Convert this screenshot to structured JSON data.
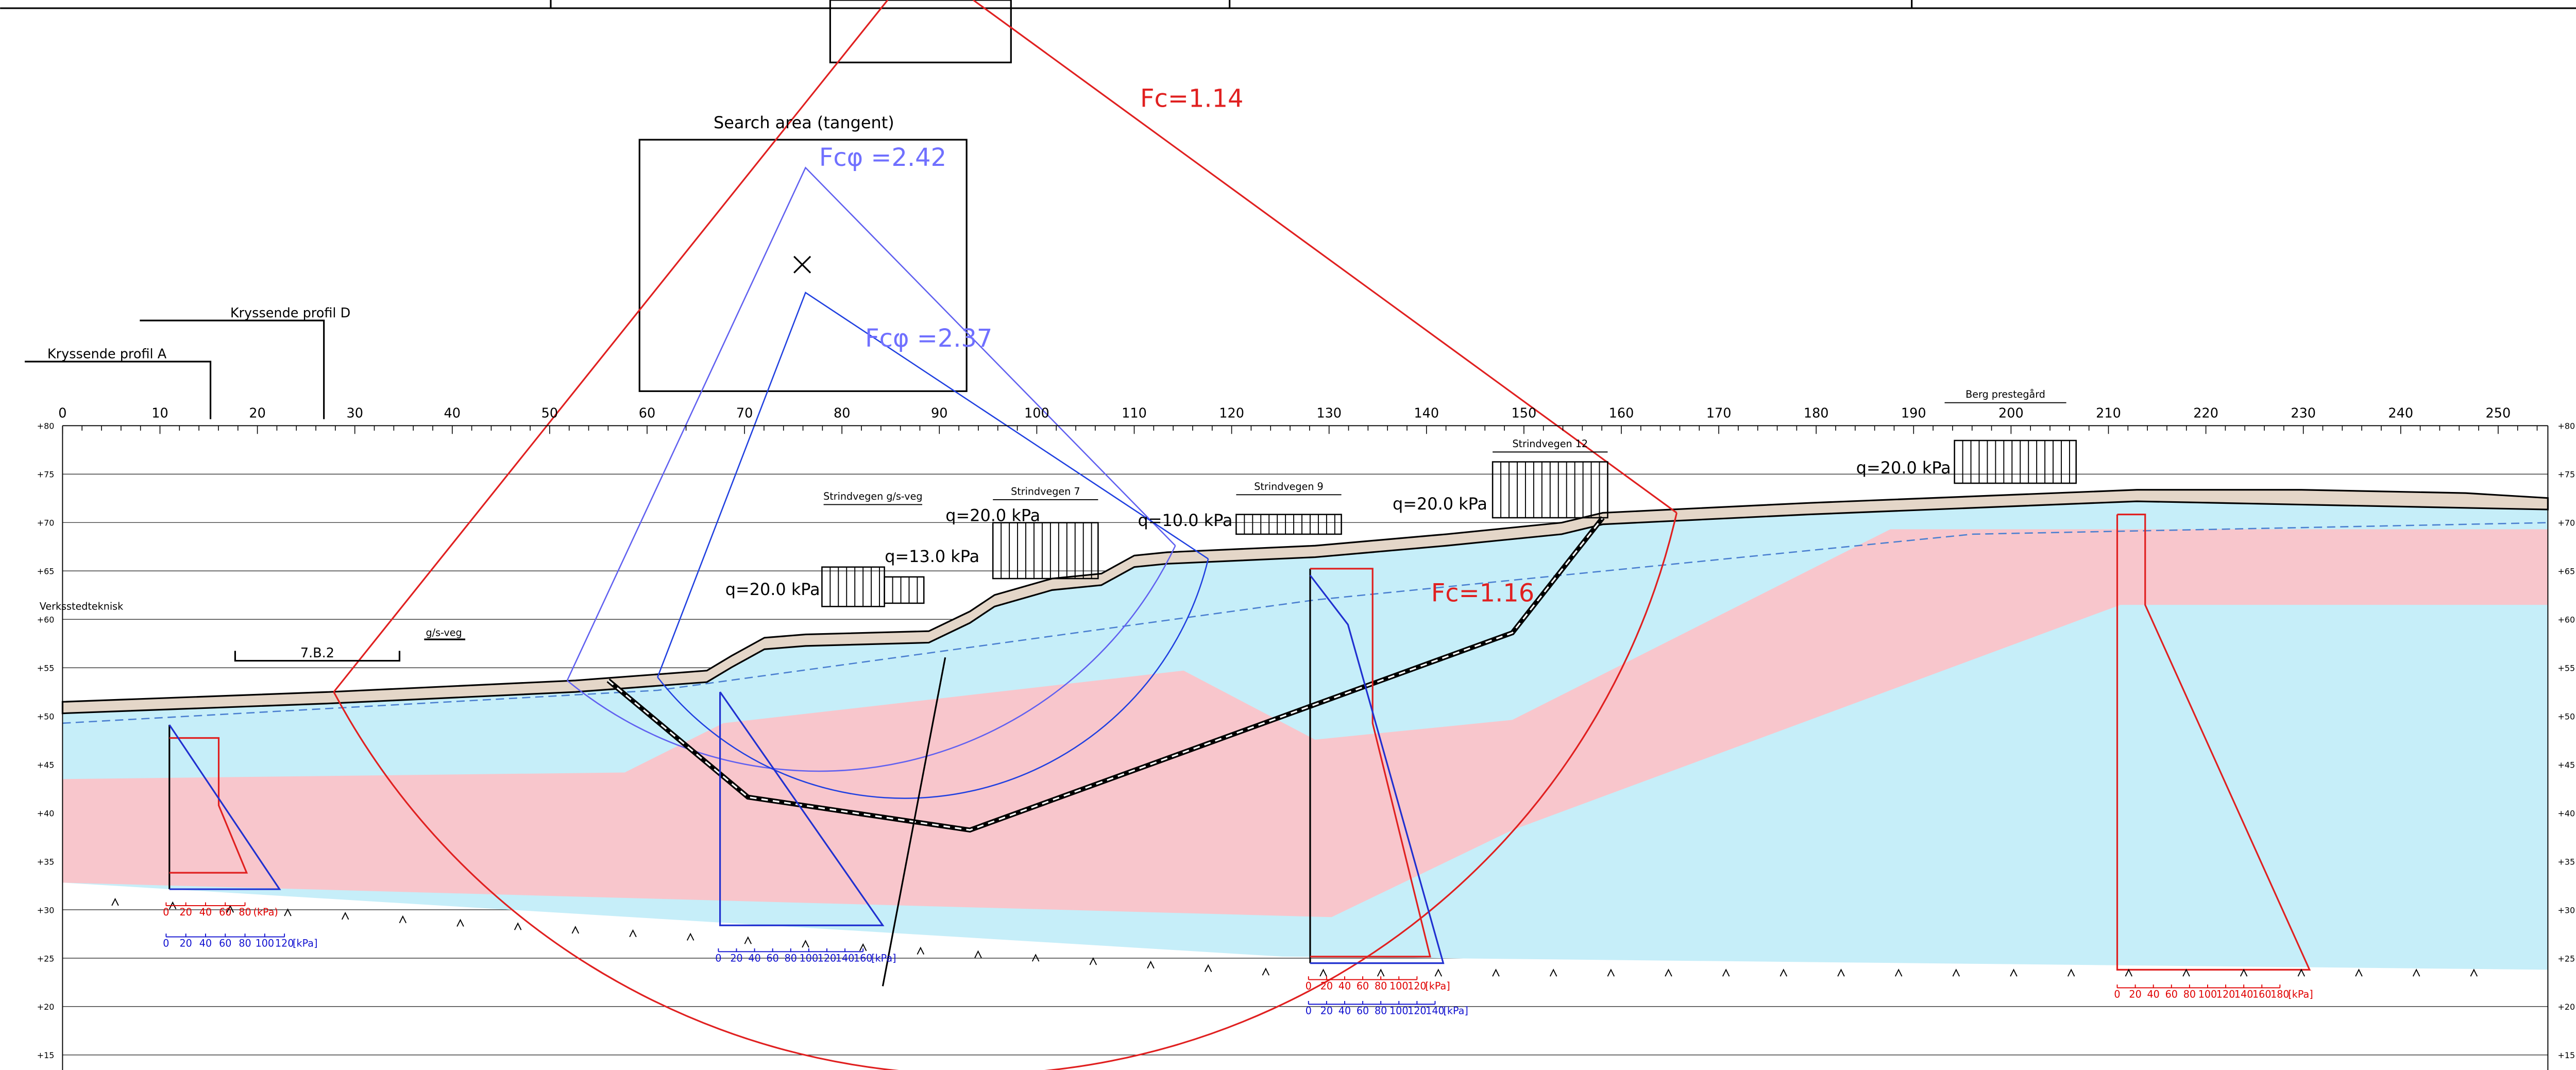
{
  "labels": {
    "search_area": "Search area (tangent)",
    "profile_d": "Kryssende profil D",
    "profile_a": "Kryssende profil A",
    "workshop": "Verksstedteknisk",
    "ref": "7.B.2",
    "gs_road": "g/s-veg"
  },
  "safety_factors": [
    "Fc=1.14",
    "Fcφ =2.42",
    "Fcφ =2.37",
    "Fc=1.16"
  ],
  "properties": [
    "Strindvegen g/s-veg",
    "Strindvegen 7",
    "Strindvegen 9",
    "Strindvegen 12",
    "Berg prestegård"
  ],
  "loads": [
    "q=20.0  kPa",
    "q=13.0  kPa",
    "q=20.0  kPa",
    "q=10.0  kPa",
    "q=20.0  kPa",
    "q=20.0  kPa"
  ],
  "distance_ruler": [
    0,
    10,
    20,
    30,
    40,
    50,
    60,
    70,
    80,
    90,
    100,
    110,
    120,
    130,
    140,
    150,
    160,
    170,
    180,
    190,
    200,
    210,
    220,
    230,
    240,
    250
  ],
  "elevation_ruler": [
    "+80",
    "+75",
    "+70",
    "+65",
    "+60",
    "+55",
    "+50",
    "+45",
    "+40",
    "+35",
    "+30",
    "+25",
    "+20",
    "+15"
  ],
  "strength_scales": [
    {
      "color": "#e00000",
      "ticks": [
        0,
        20,
        40,
        60,
        80
      ],
      "unit": "(kPa)"
    },
    {
      "color": "#1010d0",
      "ticks": [
        0,
        20,
        40,
        60,
        80,
        100,
        120
      ],
      "unit": "[kPa]"
    },
    {
      "color": "#1010d0",
      "ticks": [
        0,
        20,
        40,
        60,
        80,
        100,
        120,
        140,
        160
      ],
      "unit": "[kPa]"
    },
    {
      "color": "#e00000",
      "ticks": [
        0,
        20,
        40,
        60,
        80,
        100,
        120
      ],
      "unit": "[kPa]"
    },
    {
      "color": "#1010d0",
      "ticks": [
        0,
        20,
        40,
        60,
        80,
        100,
        120,
        140
      ],
      "unit": "[kPa]"
    },
    {
      "color": "#e00000",
      "ticks": [
        0,
        20,
        40,
        60,
        80,
        100,
        120,
        140,
        160,
        180
      ],
      "unit": "[kPa]"
    }
  ]
}
